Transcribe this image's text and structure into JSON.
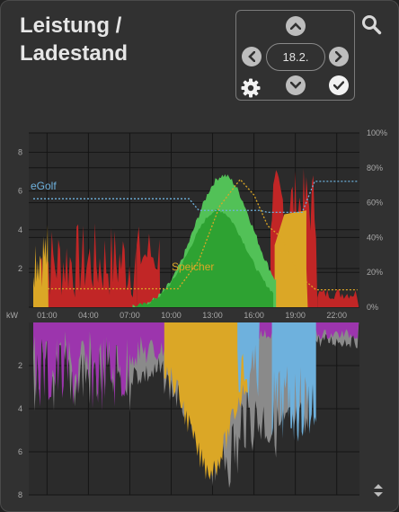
{
  "header": {
    "title_line1": "Leistung /",
    "title_line2": "Ladestand"
  },
  "nav": {
    "date": "18.2.",
    "up_icon": "chevron-up-icon",
    "down_icon": "chevron-down-icon",
    "prev_icon": "chevron-left-icon",
    "next_icon": "chevron-right-icon",
    "settings_icon": "gear-icon",
    "confirm_icon": "check-icon"
  },
  "search_icon": "search-icon",
  "sort_icon": "sort-icon",
  "colors": {
    "background": "#313131",
    "solar": "#dba726",
    "grid": "#c12626",
    "battery": "#2ea232",
    "battery_light": "#52c157",
    "consumption": "#9c35ad",
    "egolf": "#6eb1dd",
    "loss": "#8a8a8a"
  },
  "chart_data": [
    {
      "type": "area",
      "x": [
        "01:00",
        "04:00",
        "07:00",
        "10:00",
        "13:00",
        "16:00",
        "19:00",
        "22:00"
      ],
      "ylabel": "kW",
      "yticks": [
        2,
        4,
        6,
        8
      ],
      "ylim": [
        0,
        9
      ],
      "y2ticks": [
        "0%",
        "20%",
        "40%",
        "60%",
        "80%",
        "100%"
      ],
      "y2lim": [
        0,
        100
      ],
      "annotations": [
        "eGolf",
        "Speicher"
      ]
    },
    {
      "type": "area",
      "yticks": [
        2,
        4,
        6,
        8
      ],
      "ylim": [
        0,
        8
      ]
    }
  ]
}
